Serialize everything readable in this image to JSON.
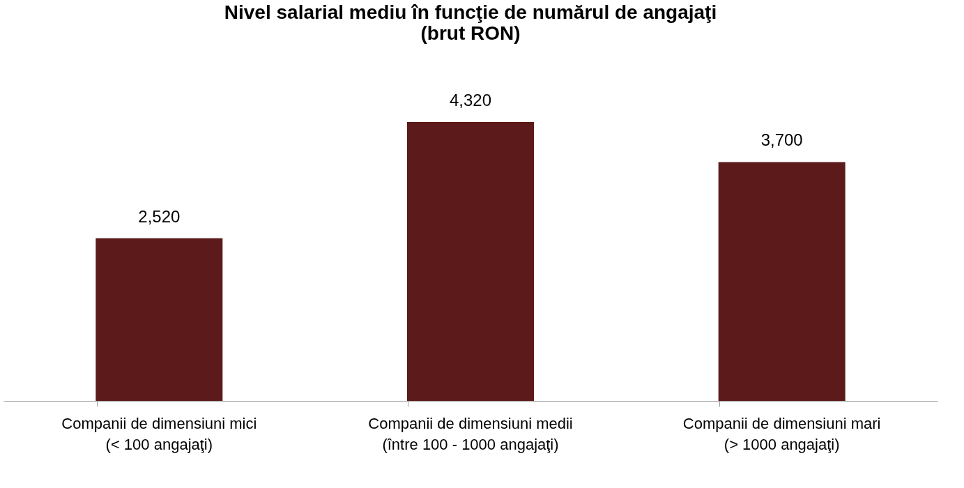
{
  "chart_data": {
    "type": "bar",
    "title": "Nivel salarial mediu în funcţie de numărul de angajaţi\n(brut RON)",
    "categories": [
      "Companii de dimensiuni mici\n(< 100 angajaţi)",
      "Companii de dimensiuni medii\n(între 100 - 1000 angajaţi)",
      "Companii de dimensiuni mari\n(> 1000 angajaţi)"
    ],
    "values": [
      2520,
      4320,
      3700
    ],
    "value_labels": [
      "2,520",
      "4,320",
      "3,700"
    ],
    "color": "#5c1a1a"
  }
}
